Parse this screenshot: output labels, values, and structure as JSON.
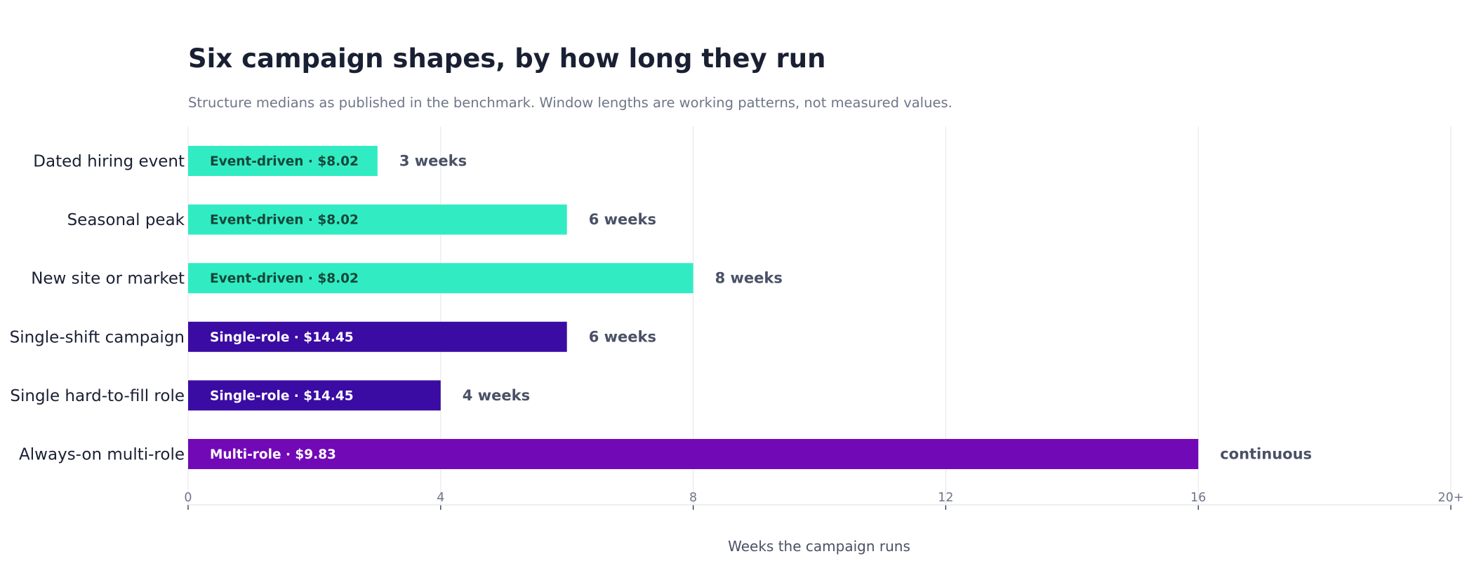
{
  "chart_data": {
    "type": "bar",
    "orientation": "horizontal",
    "title": "Six campaign shapes, by how long they run",
    "subtitle": "Structure medians as published in the benchmark. Window lengths are working patterns, not measured values.",
    "xlabel": "Weeks the campaign runs",
    "ylabel": "",
    "xlim": [
      0,
      20
    ],
    "xticks": [
      0,
      4,
      8,
      12,
      16,
      20
    ],
    "xtick_labels": [
      "0",
      "4",
      "8",
      "12",
      "16",
      "20+"
    ],
    "grid": "vertical",
    "categories": [
      "Dated hiring event",
      "Seasonal peak",
      "New site or market",
      "Single-shift campaign",
      "Single hard-to-fill role",
      "Always-on multi-role"
    ],
    "values": [
      3,
      6,
      8,
      6,
      4,
      16
    ],
    "inside_labels": [
      "Event-driven · $8.02",
      "Event-driven · $8.02",
      "Event-driven · $8.02",
      "Single-role · $14.45",
      "Single-role · $14.45",
      "Multi-role · $9.83"
    ],
    "end_labels": [
      "3 weeks",
      "6 weeks",
      "8 weeks",
      "6 weeks",
      "4 weeks",
      "continuous"
    ],
    "bar_colors": [
      "#31ecc2",
      "#31ecc2",
      "#31ecc2",
      "#3a0ca3",
      "#3a0ca3",
      "#7209b7"
    ],
    "inside_label_colors": [
      "#16463a",
      "#16463a",
      "#16463a",
      "#ffffff",
      "#ffffff",
      "#ffffff"
    ]
  }
}
